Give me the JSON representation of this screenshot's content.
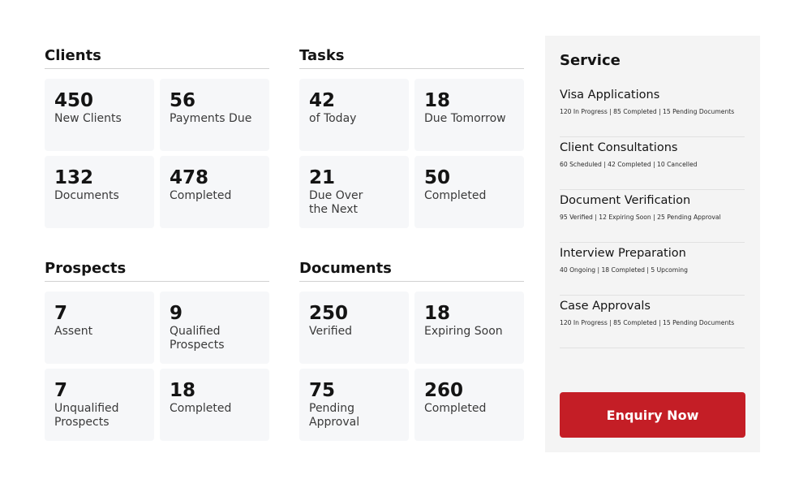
{
  "clients": {
    "title": "Clients",
    "cards": [
      {
        "value": "450",
        "label": "New Clients"
      },
      {
        "value": "56",
        "label": "Payments Due"
      },
      {
        "value": "132",
        "label": "Documents"
      },
      {
        "value": "478",
        "label": "Completed"
      }
    ]
  },
  "tasks": {
    "title": "Tasks",
    "cards": [
      {
        "value": "42",
        "label": "of Today"
      },
      {
        "value": "18",
        "label": "Due Tomorrow"
      },
      {
        "value": "21",
        "label": "Due Over the Next"
      },
      {
        "value": "50",
        "label": "Completed"
      }
    ]
  },
  "prospects": {
    "title": "Prospects",
    "cards": [
      {
        "value": "7",
        "label": "Assent"
      },
      {
        "value": "9",
        "label": "Qualified Prospects"
      },
      {
        "value": "7",
        "label": "Unqualified Prospects"
      },
      {
        "value": "18",
        "label": "Completed"
      }
    ]
  },
  "documents": {
    "title": "Documents",
    "cards": [
      {
        "value": "250",
        "label": "Verified"
      },
      {
        "value": "18",
        "label": "Expiring Soon"
      },
      {
        "value": "75",
        "label": "Pending Approval"
      },
      {
        "value": "260",
        "label": "Completed"
      }
    ]
  },
  "service": {
    "title": "Service",
    "items": [
      {
        "name": "Visa Applications",
        "desc": "120 In Progress | 85 Completed | 15 Pending Documents"
      },
      {
        "name": "Client Consultations",
        "desc": "60 Scheduled | 42 Completed | 10 Cancelled"
      },
      {
        "name": "Document Verification",
        "desc": "95 Verified | 12 Expiring Soon | 25 Pending Approval"
      },
      {
        "name": "Interview Preparation",
        "desc": "40 Ongoing | 18 Completed | 5 Upcoming"
      },
      {
        "name": "Case Approvals",
        "desc": "120 In Progress | 85 Completed | 15 Pending Documents"
      }
    ],
    "button_label": "Enquiry Now",
    "button_color": "#c41e26"
  }
}
